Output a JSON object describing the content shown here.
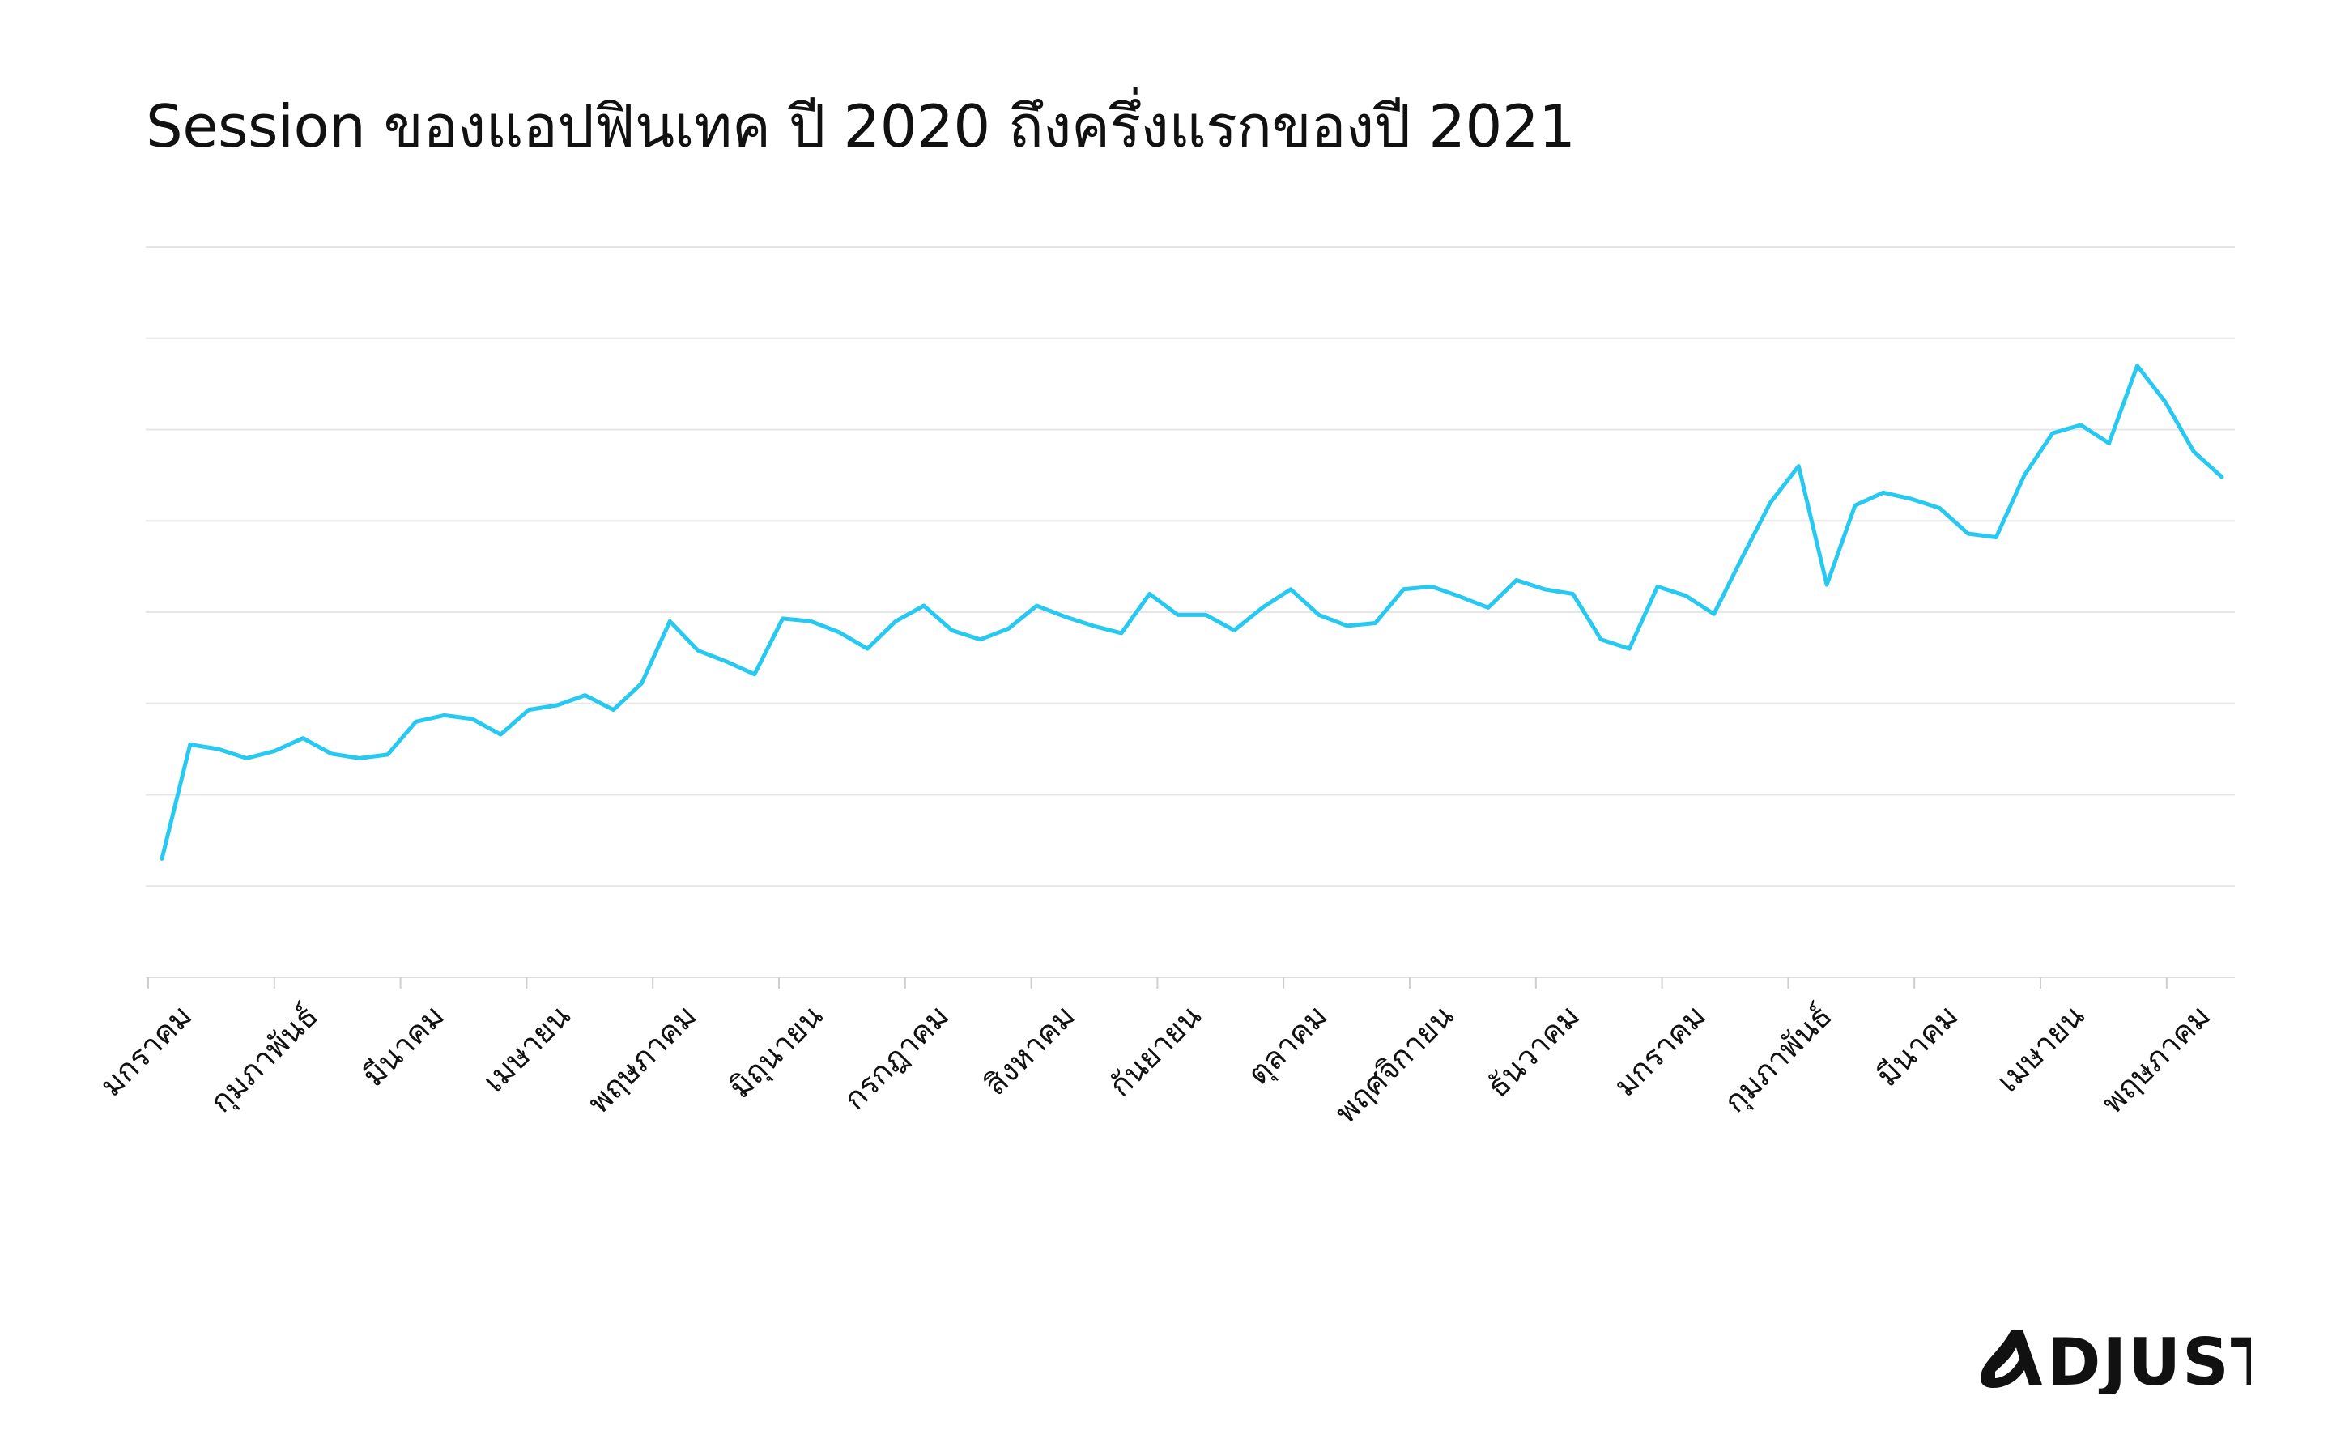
{
  "chart_data": {
    "type": "line",
    "title": "Session ของแอปฟินเทค ปี 2020 ถึงครึ่งแรกของปี 2021",
    "xlabel": "",
    "ylabel": "",
    "grid": true,
    "legend": "none",
    "ylim": [
      0,
      8
    ],
    "tick_labels": [
      "มกราคม",
      "กุมภาพันธ์",
      "มีนาคม",
      "เมษายน",
      "พฤษภาคม",
      "มิถุนายน",
      "กรกฎาคม",
      "สิงหาคม",
      "กันยายน",
      "ตุลาคม",
      "พฤศจิกายน",
      "ธันวาคม",
      "มกราคม",
      "กุมภาพันธ์",
      "มีนาคม",
      "เมษายน",
      "พฤษภาคม"
    ],
    "series": [
      {
        "color": "#27c9f0",
        "values": [
          1.3,
          2.55,
          2.5,
          2.4,
          2.48,
          2.62,
          2.45,
          2.4,
          2.44,
          2.8,
          2.87,
          2.83,
          2.66,
          2.93,
          2.98,
          3.09,
          2.93,
          3.22,
          3.9,
          3.58,
          3.46,
          3.32,
          3.93,
          3.9,
          3.78,
          3.6,
          3.9,
          4.07,
          3.8,
          3.7,
          3.82,
          4.07,
          3.95,
          3.85,
          3.77,
          4.2,
          3.97,
          3.97,
          3.8,
          4.05,
          4.25,
          3.97,
          3.85,
          3.88,
          4.25,
          4.28,
          4.17,
          4.05,
          4.35,
          4.25,
          4.2,
          3.7,
          3.6,
          4.28,
          4.18,
          3.98,
          4.6,
          5.2,
          5.6,
          4.3,
          5.17,
          5.31,
          5.24,
          5.14,
          4.86,
          4.82,
          5.5,
          5.96,
          6.05,
          5.85,
          6.7,
          6.3,
          5.76,
          5.48
        ]
      }
    ]
  },
  "brand": {
    "name": "ADJUST",
    "color": "#111111"
  }
}
